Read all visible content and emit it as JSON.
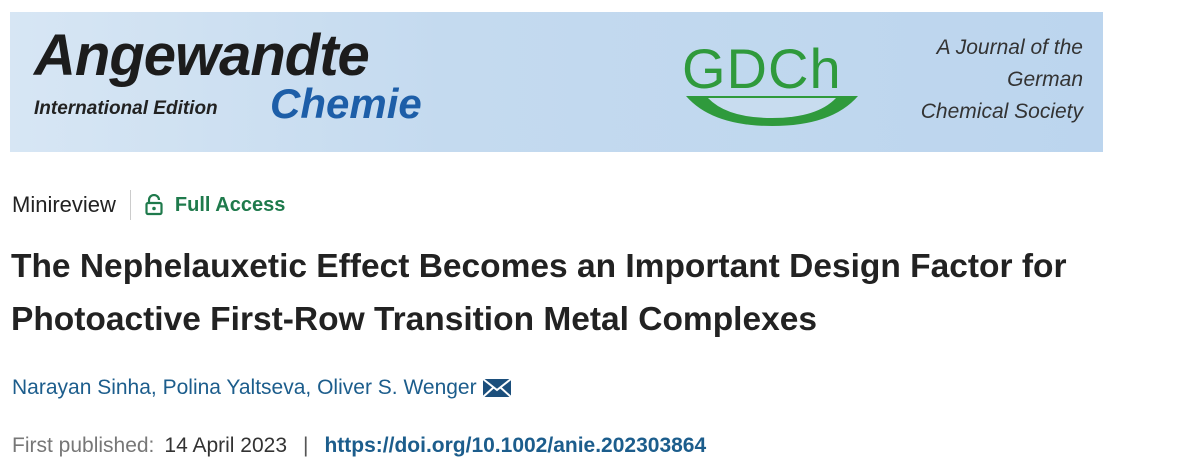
{
  "banner": {
    "journal_name": "Angewandte",
    "edition": "International Edition",
    "journal_subname": "Chemie",
    "society_logo": "GDCh",
    "society_lines": [
      "A Journal of the",
      "German",
      "Chemical Society"
    ]
  },
  "article": {
    "type": "Minireview",
    "access": "Full Access",
    "title": "The Nephelauxetic Effect Becomes an Important Design Factor for Photoactive First-Row Transition Metal Complexes",
    "authors": [
      "Narayan Sinha",
      "Polina Yaltseva",
      "Oliver S. Wenger"
    ],
    "author_separator": ", ",
    "published_label": "First published:",
    "published_date": "14 April 2023",
    "separator": "|",
    "doi": "https://doi.org/10.1002/anie.202303864"
  }
}
